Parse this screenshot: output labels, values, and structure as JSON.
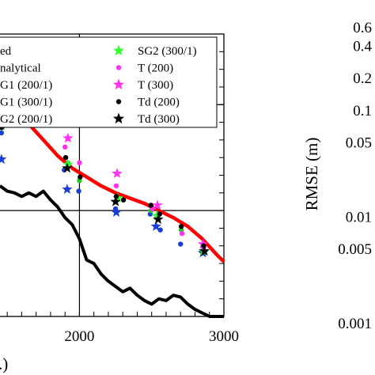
{
  "chart_data": [
    {
      "type": "scatter",
      "title": "",
      "xlabel": "",
      "xlabel_partial": ".)",
      "ylabel": "",
      "xlim": [
        1450,
        3000
      ],
      "ylim": [
        0,
        8
      ],
      "xticks": [
        2000,
        3000
      ],
      "tick_labels": [
        "2000",
        "3000"
      ],
      "grid": true,
      "grid_x": [
        2000
      ],
      "grid_y": [
        3,
        6
      ],
      "legend_position": "top",
      "legend": [
        {
          "label": "ed",
          "marker": "line",
          "color": "#ff0000"
        },
        {
          "label": "nalytical",
          "marker": "line",
          "color": "#000000"
        },
        {
          "label": "G1 (200/1)",
          "marker": "circle",
          "color": "#1a3fd6"
        },
        {
          "label": "G1 (300/1)",
          "marker": "star",
          "color": "#1a3fd6"
        },
        {
          "label": "G2 (200/1)",
          "marker": "circle",
          "color": "#22cc22"
        },
        {
          "label": "SG2 (300/1)",
          "marker": "star",
          "color": "#33ff33"
        },
        {
          "label": "T (200)",
          "marker": "circle",
          "color": "#ff33ee"
        },
        {
          "label": "T (300)",
          "marker": "star",
          "color": "#ff33ee"
        },
        {
          "label": "Td (200)",
          "marker": "circle",
          "color": "#000000"
        },
        {
          "label": "Td (300)",
          "marker": "star",
          "color": "#000000"
        }
      ],
      "lines": [
        {
          "name": "ed",
          "color": "#ff0000",
          "x": [
            1450,
            1550,
            1650,
            1750,
            1850,
            1950,
            2050,
            2150,
            2250,
            2350,
            2450,
            2550,
            2650,
            2750,
            2850,
            2950,
            3000
          ],
          "y": [
            6.45,
            5.95,
            5.45,
            5.0,
            4.55,
            4.2,
            3.95,
            3.7,
            3.5,
            3.35,
            3.2,
            3.0,
            2.8,
            2.55,
            2.2,
            1.75,
            1.55
          ]
        },
        {
          "name": "nalytical",
          "color": "#000000",
          "x": [
            1450,
            1500,
            1550,
            1600,
            1650,
            1700,
            1750,
            1800,
            1850,
            1900,
            1950,
            2000,
            2050,
            2100,
            2150,
            2200,
            2250,
            2300,
            2350,
            2400,
            2450,
            2500,
            2550,
            2600,
            2650,
            2700,
            2750,
            2800,
            2850,
            2900,
            2950,
            3000
          ],
          "y": [
            3.7,
            3.55,
            3.5,
            3.4,
            3.5,
            3.4,
            3.55,
            3.3,
            3.1,
            2.8,
            2.6,
            2.2,
            1.6,
            1.5,
            1.2,
            1.0,
            0.85,
            0.7,
            0.8,
            0.6,
            0.45,
            0.35,
            0.5,
            0.45,
            0.6,
            0.55,
            0.35,
            0.2,
            0.1,
            0.0,
            0.0,
            0.0
          ]
        }
      ],
      "series": [
        {
          "name": "G1 (200/1)",
          "marker": "circle",
          "color": "#1a3fd6",
          "x": [
            1460,
            1895,
            1995,
            2250,
            2490,
            2560,
            2700,
            2850
          ],
          "y": [
            5.2,
            4.15,
            3.55,
            3.05,
            2.9,
            2.45,
            2.05,
            1.85
          ]
        },
        {
          "name": "G1 (300/1)",
          "marker": "star",
          "color": "#1a3fd6",
          "x": [
            1460,
            1915,
            2255,
            2530,
            2855
          ],
          "y": [
            4.45,
            3.6,
            2.95,
            2.55,
            1.8
          ]
        },
        {
          "name": "G2 (200/1)",
          "marker": "circle",
          "color": "#22cc22",
          "x": [
            1460,
            1920,
            2000,
            2260,
            2495,
            2545,
            2705,
            2855
          ],
          "y": [
            5.5,
            4.35,
            3.85,
            3.3,
            3.0,
            2.85,
            2.45,
            1.85
          ]
        },
        {
          "name": "SG2 (300/1)",
          "marker": "star",
          "color": "#33ff33",
          "x": [
            1460,
            1920,
            2265,
            2535,
            2860
          ],
          "y": [
            5.4,
            4.3,
            3.35,
            2.85,
            1.85
          ]
        },
        {
          "name": "T (200)",
          "marker": "circle",
          "color": "#ff33ee",
          "x": [
            1460,
            1900,
            2000,
            2255,
            2505,
            2710,
            2860
          ],
          "y": [
            5.75,
            4.8,
            4.35,
            3.7,
            3.05,
            2.35,
            1.95
          ]
        },
        {
          "name": "T (300)",
          "marker": "star",
          "color": "#ff33ee",
          "x": [
            1460,
            1920,
            2260,
            2540,
            2855
          ],
          "y": [
            6.3,
            5.05,
            4.05,
            3.15,
            2.05
          ]
        },
        {
          "name": "Td (200)",
          "marker": "circle",
          "color": "#000000",
          "x": [
            1460,
            1905,
            2005,
            2255,
            2305,
            2495,
            2555,
            2705,
            2860
          ],
          "y": [
            5.35,
            4.5,
            3.95,
            3.4,
            3.3,
            3.15,
            2.9,
            2.55,
            2.0
          ]
        },
        {
          "name": "Td (300)",
          "marker": "star",
          "color": "#000000",
          "x": [
            1460,
            1915,
            2250,
            2545,
            2865
          ],
          "y": [
            5.45,
            4.2,
            3.25,
            2.75,
            1.85
          ]
        }
      ]
    },
    {
      "type": "scatter",
      "title": "",
      "xlabel": "",
      "ylabel": "RMSE (m)",
      "yscale": "log",
      "yticks": [
        0.6,
        0.4,
        0.2,
        0.1,
        0.05,
        0.01,
        0.005,
        0.001
      ],
      "tick_labels": [
        "0.6",
        "0.4",
        "0.2",
        "0.1",
        "0.05",
        "0.01",
        "0.005",
        "0.001"
      ],
      "series": []
    }
  ]
}
